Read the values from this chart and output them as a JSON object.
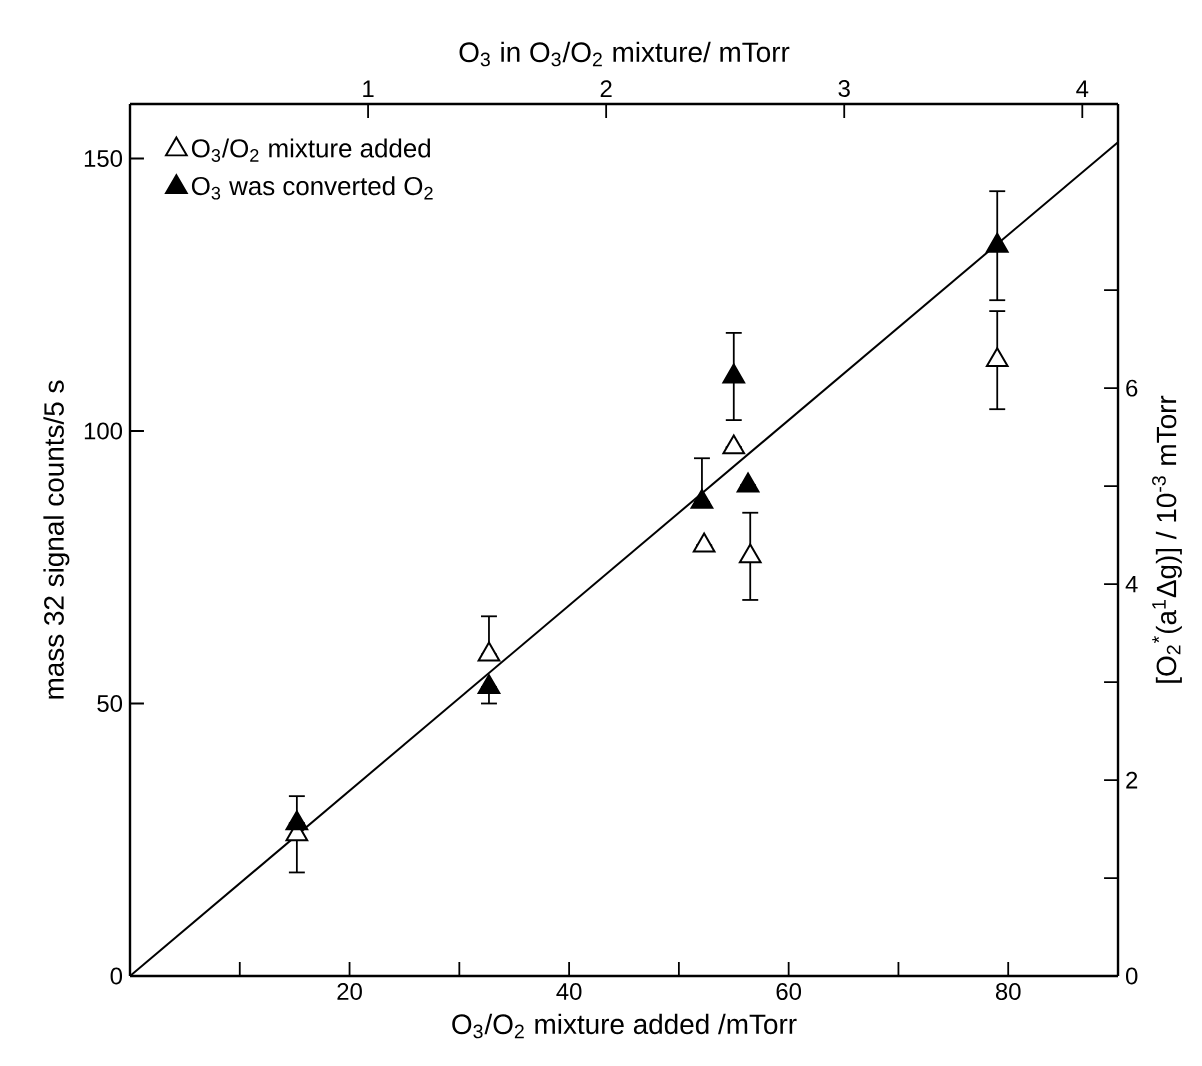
{
  "chart_data": {
    "type": "scatter",
    "xlabel": "O$_{3}$/O$_{2}$ mixture added /mTorr",
    "ylabel": "mass 32 signal counts/5 s",
    "x2label": "O$_{3}$ in O$_{3}$/O$_{2}$ mixture/ mTorr",
    "y2label": "[O$_{2}$$^{*}$(a$^{1}$Δg)] / 10$^{-3}$ mTorr",
    "xlim": [
      0,
      90
    ],
    "ylim": [
      0,
      160
    ],
    "xticks": [
      {
        "value": 10,
        "label": null
      },
      20,
      {
        "value": 30,
        "label": null
      },
      40,
      {
        "value": 50,
        "label": null
      },
      60,
      {
        "value": 70,
        "label": null
      },
      80
    ],
    "yticks": [
      0,
      50,
      100,
      150
    ],
    "x2lim": [
      0,
      4.15
    ],
    "x2ticks": [
      1,
      2,
      3,
      4
    ],
    "y2lim": [
      0,
      8.9
    ],
    "y2ticks": [
      0,
      {
        "value": 1,
        "label": null
      },
      2,
      {
        "value": 3,
        "label": null
      },
      4,
      {
        "value": 5,
        "label": null
      },
      6,
      {
        "value": 7,
        "label": null
      }
    ],
    "legend": "top left",
    "series": [
      {
        "name": "O$_{3}$/O$_{2}$ mixture added",
        "color": "#ffffff",
        "marker": "triangle",
        "x": [
          15.2,
          32.7,
          52.3,
          55.0,
          56.5,
          79.0
        ],
        "values": [
          26,
          59,
          79,
          97,
          77,
          113
        ],
        "errors": [
          7,
          [
            59,
            66
          ],
          null,
          null,
          8,
          9
        ]
      },
      {
        "name": "O$_{3}$ was converted O$_{2}$",
        "color": "#000000",
        "marker": "triangle",
        "x": [
          15.2,
          32.7,
          52.1,
          55.0,
          56.3,
          79.0
        ],
        "values": [
          28,
          53,
          87,
          110,
          90,
          134
        ],
        "errors": [
          null,
          [
            50,
            53
          ],
          [
            87,
            95
          ],
          8,
          null,
          10
        ]
      },
      {
        "type": "line",
        "color": "#000000",
        "marker": "none",
        "line_style": "solid",
        "x": [
          0,
          90
        ],
        "values": [
          0,
          153
        ]
      }
    ]
  }
}
